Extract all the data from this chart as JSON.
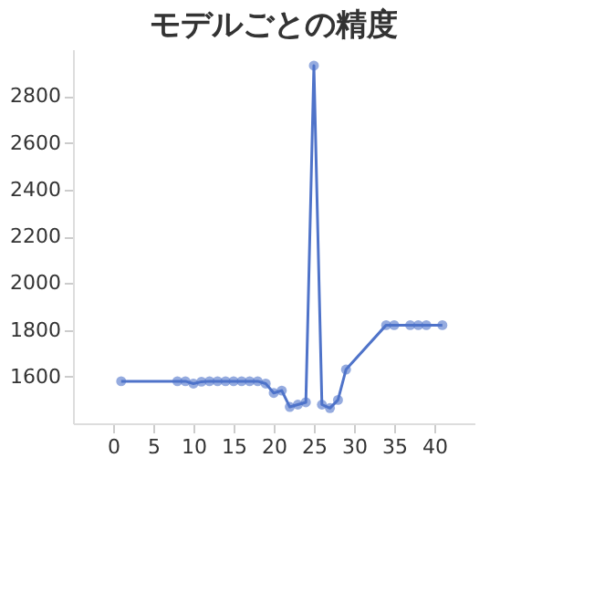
{
  "chart_data": {
    "type": "line",
    "title": "モデルごとの精度",
    "x": [
      1,
      8,
      9,
      10,
      11,
      12,
      13,
      14,
      15,
      16,
      17,
      18,
      19,
      20,
      21,
      22,
      23,
      24,
      25,
      26,
      27,
      28,
      29,
      34,
      35,
      37,
      38,
      39,
      41
    ],
    "series": [
      {
        "color": "#4f73c9",
        "values": [
          1580,
          1580,
          1580,
          1570,
          1578,
          1580,
          1580,
          1580,
          1580,
          1580,
          1580,
          1580,
          1570,
          1530,
          1540,
          1470,
          1480,
          1490,
          2930,
          1480,
          1465,
          1500,
          1630,
          1820,
          1820,
          1820,
          1820,
          1820,
          1820
        ]
      }
    ],
    "xlim": [
      -5,
      45
    ],
    "xticks": [
      0,
      5,
      10,
      15,
      20,
      25,
      30,
      35,
      40
    ],
    "ylim": [
      1400,
      3000
    ],
    "yticks": [
      1600,
      1800,
      2000,
      2200,
      2400,
      2600,
      2800
    ],
    "grid": false,
    "legend": false,
    "marker": "circle",
    "line_style": "solid"
  }
}
